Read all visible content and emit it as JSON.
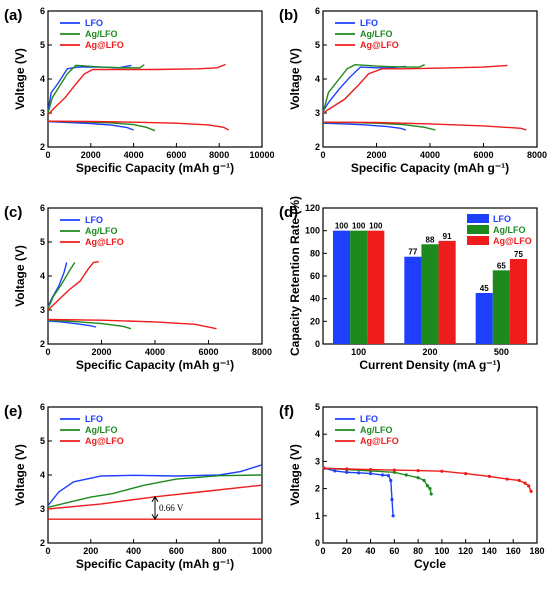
{
  "colors": {
    "LFO": "#1f3fff",
    "Ag/LFO": "#1e8a1e",
    "Ag@LFO": "#ee1c1c"
  },
  "legend_names": [
    "LFO",
    "Ag/LFO",
    "Ag@LFO"
  ],
  "chart_data": [
    {
      "panel": "(a)",
      "type": "line",
      "xlabel": "Specific Capacity (mAh g⁻¹)",
      "ylabel": "Voltage (V)",
      "xlim": [
        0,
        10000
      ],
      "ylim": [
        2,
        6
      ],
      "xticks": [
        "0",
        "2000",
        "4000",
        "6000",
        "8000",
        "10000"
      ],
      "yticks": [
        "2",
        "3",
        "4",
        "5",
        "6"
      ],
      "legend": "top-left",
      "series": [
        {
          "name": "LFO",
          "curves": [
            [
              [
                0,
                3.05
              ],
              [
                150,
                3.6
              ],
              [
                500,
                3.9
              ],
              [
                900,
                4.3
              ],
              [
                1400,
                4.35
              ],
              [
                2500,
                4.35
              ],
              [
                3300,
                4.33
              ],
              [
                3900,
                4.4
              ]
            ],
            [
              [
                0,
                2.75
              ],
              [
                1000,
                2.72
              ],
              [
                2000,
                2.69
              ],
              [
                3000,
                2.64
              ],
              [
                3700,
                2.57
              ],
              [
                4000,
                2.5
              ]
            ]
          ]
        },
        {
          "name": "Ag/LFO",
          "curves": [
            [
              [
                0,
                3.0
              ],
              [
                200,
                3.45
              ],
              [
                500,
                3.75
              ],
              [
                900,
                4.15
              ],
              [
                1300,
                4.4
              ],
              [
                2500,
                4.35
              ],
              [
                3500,
                4.33
              ],
              [
                4300,
                4.33
              ],
              [
                4500,
                4.42
              ]
            ],
            [
              [
                0,
                2.76
              ],
              [
                1500,
                2.74
              ],
              [
                3000,
                2.71
              ],
              [
                4000,
                2.66
              ],
              [
                4600,
                2.58
              ],
              [
                5000,
                2.48
              ]
            ]
          ]
        },
        {
          "name": "Ag@LFO",
          "curves": [
            [
              [
                0,
                2.95
              ],
              [
                300,
                3.15
              ],
              [
                800,
                3.45
              ],
              [
                1300,
                3.85
              ],
              [
                1700,
                4.15
              ],
              [
                2100,
                4.28
              ],
              [
                3000,
                4.28
              ],
              [
                5000,
                4.28
              ],
              [
                7000,
                4.3
              ],
              [
                7900,
                4.33
              ],
              [
                8300,
                4.43
              ]
            ],
            [
              [
                0,
                2.76
              ],
              [
                2000,
                2.75
              ],
              [
                4000,
                2.73
              ],
              [
                6000,
                2.7
              ],
              [
                7500,
                2.65
              ],
              [
                8200,
                2.58
              ],
              [
                8450,
                2.5
              ]
            ]
          ]
        }
      ]
    },
    {
      "panel": "(b)",
      "type": "line",
      "xlabel": "Specific Capacity (mAh g⁻¹)",
      "ylabel": "Voltage (V)",
      "xlim": [
        0,
        8000
      ],
      "ylim": [
        2,
        6
      ],
      "xticks": [
        "0",
        "2000",
        "4000",
        "6000",
        "8000"
      ],
      "yticks": [
        "2",
        "3",
        "4",
        "5",
        "6"
      ],
      "legend": "top-left",
      "series": [
        {
          "name": "LFO",
          "curves": [
            [
              [
                0,
                3.05
              ],
              [
                200,
                3.3
              ],
              [
                600,
                3.7
              ],
              [
                1000,
                4.05
              ],
              [
                1400,
                4.35
              ],
              [
                2000,
                4.33
              ],
              [
                2500,
                4.33
              ],
              [
                3100,
                4.37
              ]
            ],
            [
              [
                0,
                2.7
              ],
              [
                800,
                2.68
              ],
              [
                1600,
                2.65
              ],
              [
                2400,
                2.6
              ],
              [
                2900,
                2.55
              ],
              [
                3100,
                2.5
              ]
            ]
          ]
        },
        {
          "name": "Ag/LFO",
          "curves": [
            [
              [
                0,
                3.0
              ],
              [
                200,
                3.6
              ],
              [
                600,
                4.0
              ],
              [
                900,
                4.3
              ],
              [
                1200,
                4.42
              ],
              [
                2000,
                4.38
              ],
              [
                3000,
                4.35
              ],
              [
                3600,
                4.35
              ],
              [
                3800,
                4.42
              ]
            ],
            [
              [
                0,
                2.72
              ],
              [
                1000,
                2.72
              ],
              [
                2000,
                2.7
              ],
              [
                3000,
                2.66
              ],
              [
                3800,
                2.58
              ],
              [
                4200,
                2.5
              ]
            ]
          ]
        },
        {
          "name": "Ag@LFO",
          "curves": [
            [
              [
                0,
                3.0
              ],
              [
                300,
                3.15
              ],
              [
                800,
                3.4
              ],
              [
                1300,
                3.8
              ],
              [
                1700,
                4.15
              ],
              [
                2200,
                4.3
              ],
              [
                3000,
                4.3
              ],
              [
                4500,
                4.32
              ],
              [
                6000,
                4.35
              ],
              [
                6900,
                4.4
              ]
            ],
            [
              [
                0,
                2.73
              ],
              [
                2000,
                2.72
              ],
              [
                4000,
                2.68
              ],
              [
                6000,
                2.62
              ],
              [
                7400,
                2.55
              ],
              [
                7600,
                2.5
              ]
            ]
          ]
        }
      ]
    },
    {
      "panel": "(c)",
      "type": "line",
      "xlabel": "Specific Capacity (mAh g⁻¹)",
      "ylabel": "Voltage (V)",
      "xlim": [
        0,
        8000
      ],
      "ylim": [
        2,
        6
      ],
      "xticks": [
        "0",
        "2000",
        "4000",
        "6000",
        "8000"
      ],
      "yticks": [
        "2",
        "3",
        "4",
        "5",
        "6"
      ],
      "legend": "top-left",
      "series": [
        {
          "name": "LFO",
          "curves": [
            [
              [
                0,
                3.1
              ],
              [
                150,
                3.35
              ],
              [
                400,
                3.7
              ],
              [
                600,
                4.1
              ],
              [
                700,
                4.4
              ]
            ],
            [
              [
                0,
                2.68
              ],
              [
                500,
                2.65
              ],
              [
                1000,
                2.6
              ],
              [
                1500,
                2.55
              ],
              [
                1800,
                2.5
              ]
            ]
          ]
        },
        {
          "name": "Ag/LFO",
          "curves": [
            [
              [
                0,
                3.05
              ],
              [
                200,
                3.4
              ],
              [
                500,
                3.75
              ],
              [
                800,
                4.15
              ],
              [
                1000,
                4.4
              ]
            ],
            [
              [
                0,
                2.7
              ],
              [
                1000,
                2.66
              ],
              [
                2000,
                2.6
              ],
              [
                2800,
                2.52
              ],
              [
                3100,
                2.45
              ]
            ]
          ]
        },
        {
          "name": "Ag@LFO",
          "curves": [
            [
              [
                0,
                3.0
              ],
              [
                400,
                3.3
              ],
              [
                800,
                3.6
              ],
              [
                1200,
                3.85
              ],
              [
                1500,
                4.2
              ],
              [
                1700,
                4.4
              ],
              [
                1900,
                4.42
              ]
            ],
            [
              [
                0,
                2.72
              ],
              [
                2000,
                2.7
              ],
              [
                4000,
                2.65
              ],
              [
                5500,
                2.58
              ],
              [
                6300,
                2.45
              ]
            ]
          ]
        }
      ]
    },
    {
      "panel": "(d)",
      "type": "bar",
      "xlabel": "Current Density (mA g⁻¹)",
      "ylabel": "Capacity Retention Rate (%)",
      "ylim": [
        0,
        120
      ],
      "categories": [
        "100",
        "200",
        "500"
      ],
      "yticks": [
        "0",
        "20",
        "40",
        "60",
        "80",
        "100",
        "120"
      ],
      "legend": "top-right",
      "series": [
        {
          "name": "LFO",
          "values": [
            100,
            77,
            45
          ]
        },
        {
          "name": "Ag/LFO",
          "values": [
            100,
            88,
            65
          ]
        },
        {
          "name": "Ag@LFO",
          "values": [
            100,
            91,
            75
          ]
        }
      ]
    },
    {
      "panel": "(e)",
      "type": "line",
      "xlabel": "Specific Capacity (mAh g⁻¹)",
      "ylabel": "Voltage (V)",
      "xlim": [
        0,
        1000
      ],
      "ylim": [
        2,
        6
      ],
      "xticks": [
        "0",
        "200",
        "400",
        "600",
        "800",
        "1000"
      ],
      "yticks": [
        "2",
        "3",
        "4",
        "5",
        "6"
      ],
      "legend": "top-left",
      "annotation": "0.66 V",
      "annotation_x": 500,
      "annotation_range": [
        2.7,
        3.36
      ],
      "series": [
        {
          "name": "LFO",
          "curves": [
            [
              [
                0,
                3.1
              ],
              [
                50,
                3.5
              ],
              [
                120,
                3.8
              ],
              [
                250,
                3.97
              ],
              [
                400,
                3.99
              ],
              [
                600,
                3.97
              ],
              [
                800,
                4.0
              ],
              [
                900,
                4.1
              ],
              [
                1000,
                4.3
              ]
            ]
          ]
        },
        {
          "name": "Ag/LFO",
          "curves": [
            [
              [
                0,
                3.05
              ],
              [
                100,
                3.2
              ],
              [
                200,
                3.35
              ],
              [
                300,
                3.45
              ],
              [
                450,
                3.7
              ],
              [
                600,
                3.88
              ],
              [
                800,
                3.98
              ],
              [
                1000,
                4.0
              ]
            ]
          ]
        },
        {
          "name": "Ag@LFO",
          "curves": [
            [
              [
                0,
                3.0
              ],
              [
                250,
                3.15
              ],
              [
                500,
                3.36
              ],
              [
                750,
                3.53
              ],
              [
                1000,
                3.7
              ]
            ],
            [
              [
                0,
                2.7
              ],
              [
                1000,
                2.7
              ]
            ]
          ]
        }
      ]
    },
    {
      "panel": "(f)",
      "type": "line",
      "xlabel": "Cycle",
      "ylabel": "Voltage (V)",
      "xlim": [
        0,
        180
      ],
      "ylim": [
        0,
        5
      ],
      "xticks": [
        "0",
        "20",
        "40",
        "60",
        "80",
        "100",
        "120",
        "140",
        "160",
        "180"
      ],
      "yticks": [
        "0",
        "1",
        "2",
        "3",
        "4",
        "5"
      ],
      "legend": "top-left",
      "markers": true,
      "series": [
        {
          "name": "LFO",
          "curves": [
            [
              [
                1,
                2.75
              ],
              [
                10,
                2.65
              ],
              [
                20,
                2.6
              ],
              [
                30,
                2.58
              ],
              [
                40,
                2.55
              ],
              [
                50,
                2.5
              ],
              [
                55,
                2.48
              ],
              [
                57,
                2.3
              ],
              [
                58,
                1.6
              ],
              [
                59,
                1.0
              ]
            ]
          ]
        },
        {
          "name": "Ag/LFO",
          "curves": [
            [
              [
                1,
                2.75
              ],
              [
                20,
                2.7
              ],
              [
                40,
                2.65
              ],
              [
                60,
                2.6
              ],
              [
                70,
                2.5
              ],
              [
                80,
                2.4
              ],
              [
                85,
                2.3
              ],
              [
                88,
                2.1
              ],
              [
                90,
                2.0
              ],
              [
                91,
                1.8
              ]
            ]
          ]
        },
        {
          "name": "Ag@LFO",
          "curves": [
            [
              [
                1,
                2.75
              ],
              [
                20,
                2.72
              ],
              [
                40,
                2.7
              ],
              [
                60,
                2.68
              ],
              [
                80,
                2.66
              ],
              [
                100,
                2.64
              ],
              [
                120,
                2.55
              ],
              [
                140,
                2.45
              ],
              [
                155,
                2.35
              ],
              [
                165,
                2.3
              ],
              [
                170,
                2.2
              ],
              [
                173,
                2.1
              ],
              [
                175,
                1.9
              ]
            ]
          ]
        }
      ]
    }
  ]
}
